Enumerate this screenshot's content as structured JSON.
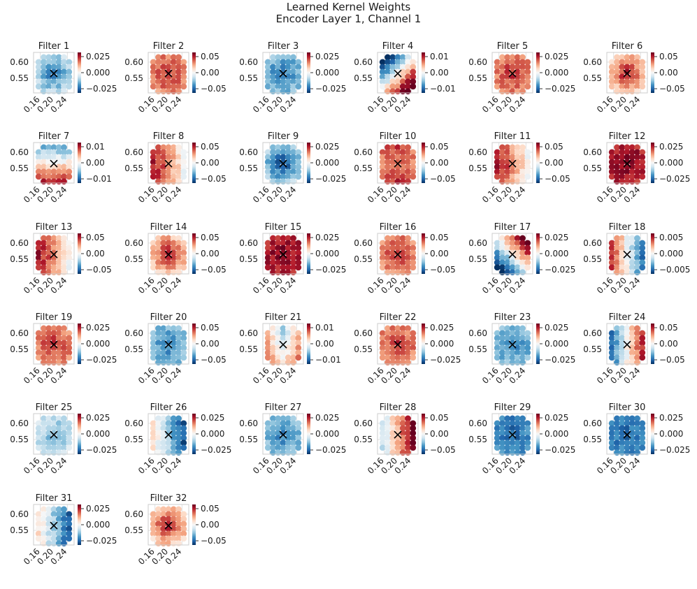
{
  "title_line1": "Learned Kernel Weights",
  "title_line2": "Encoder Layer 1, Channel 1",
  "chart_data": {
    "type": "scatter",
    "description_axes": {
      "xticks": [
        "0.16",
        "0.20",
        "0.24"
      ],
      "yticks": [
        "0.60",
        "0.55"
      ],
      "xlim": [
        0.14,
        0.26
      ],
      "ylim": [
        0.505,
        0.63
      ]
    },
    "center_marker": {
      "x": 0.2,
      "y": 0.565,
      "symbol": "×"
    },
    "colormap": "RdBu_r",
    "colors": {
      "neg": "#053061",
      "mid": "#f7f7f7",
      "pos": "#67001f"
    },
    "filters": [
      {
        "title": "Filter 1",
        "range": 0.025,
        "ticks": [
          "0.025",
          "0.000",
          "−0.025"
        ],
        "pattern": "neg_center"
      },
      {
        "title": "Filter 2",
        "range": 0.05,
        "ticks": [
          "0.05",
          "0.00",
          "−0.05"
        ],
        "pattern": "pos_all"
      },
      {
        "title": "Filter 3",
        "range": 0.025,
        "ticks": [
          "0.025",
          "0.000",
          "−0.025"
        ],
        "pattern": "neg_all"
      },
      {
        "title": "Filter 4",
        "range": 0.01,
        "ticks": [
          "0.01",
          "0.00",
          "−0.01"
        ],
        "pattern": "diag_pos_neg"
      },
      {
        "title": "Filter 5",
        "range": 0.025,
        "ticks": [
          "0.025",
          "0.000",
          "−0.025"
        ],
        "pattern": "pos_all"
      },
      {
        "title": "Filter 6",
        "range": 0.05,
        "ticks": [
          "0.05",
          "0.00",
          "−0.05"
        ],
        "pattern": "pos_center"
      },
      {
        "title": "Filter 7",
        "range": 0.01,
        "ticks": [
          "0.01",
          "0.00",
          "−0.01"
        ],
        "pattern": "pos_bottom"
      },
      {
        "title": "Filter 8",
        "range": 0.05,
        "ticks": [
          "0.05",
          "0.00",
          "−0.05"
        ],
        "pattern": "pos_left"
      },
      {
        "title": "Filter 9",
        "range": 0.025,
        "ticks": [
          "0.025",
          "0.000",
          "−0.025"
        ],
        "pattern": "neg_center_strong"
      },
      {
        "title": "Filter 10",
        "range": 0.05,
        "ticks": [
          "0.05",
          "0.00",
          "−0.05"
        ],
        "pattern": "pos_ring"
      },
      {
        "title": "Filter 11",
        "range": 0.05,
        "ticks": [
          "0.05",
          "0.00",
          "−0.05"
        ],
        "pattern": "pos_left"
      },
      {
        "title": "Filter 12",
        "range": 0.025,
        "ticks": [
          "0.025",
          "0.000",
          "−0.025"
        ],
        "pattern": "pos_all_strong"
      },
      {
        "title": "Filter 13",
        "range": 0.05,
        "ticks": [
          "0.05",
          "0.00",
          "−0.05"
        ],
        "pattern": "pos_left"
      },
      {
        "title": "Filter 14",
        "range": 0.05,
        "ticks": [
          "0.05",
          "0.00",
          "−0.05"
        ],
        "pattern": "pos_center"
      },
      {
        "title": "Filter 15",
        "range": 0.025,
        "ticks": [
          "0.025",
          "0.000",
          "−0.025"
        ],
        "pattern": "pos_all_strong"
      },
      {
        "title": "Filter 16",
        "range": 0.05,
        "ticks": [
          "0.05",
          "0.00",
          "−0.05"
        ],
        "pattern": "pos_all"
      },
      {
        "title": "Filter 17",
        "range": 0.025,
        "ticks": [
          "0.025",
          "0.000",
          "−0.025"
        ],
        "pattern": "diag_neg_pos"
      },
      {
        "title": "Filter 18",
        "range": 0.005,
        "ticks": [
          "0.005",
          "0.000",
          "−0.005"
        ],
        "pattern": "pos_left_neg_right"
      },
      {
        "title": "Filter 19",
        "range": 0.025,
        "ticks": [
          "0.025",
          "0.000",
          "−0.025"
        ],
        "pattern": "pos_all"
      },
      {
        "title": "Filter 20",
        "range": 0.05,
        "ticks": [
          "0.05",
          "0.00",
          "−0.05"
        ],
        "pattern": "neg_all"
      },
      {
        "title": "Filter 21",
        "range": 0.01,
        "ticks": [
          "0.01",
          "0.00",
          "−0.01"
        ],
        "pattern": "pos_sides"
      },
      {
        "title": "Filter 22",
        "range": 0.025,
        "ticks": [
          "0.025",
          "0.000",
          "−0.025"
        ],
        "pattern": "pos_all"
      },
      {
        "title": "Filter 23",
        "range": 0.025,
        "ticks": [
          "0.025",
          "0.000",
          "−0.025"
        ],
        "pattern": "neg_all"
      },
      {
        "title": "Filter 24",
        "range": 0.05,
        "ticks": [
          "0.05",
          "0.00",
          "−0.05"
        ],
        "pattern": "neg_left_pos_right"
      },
      {
        "title": "Filter 25",
        "range": 0.025,
        "ticks": [
          "0.025",
          "0.000",
          "−0.025"
        ],
        "pattern": "neg_weak"
      },
      {
        "title": "Filter 26",
        "range": 0.025,
        "ticks": [
          "0.025",
          "0.000",
          "−0.025"
        ],
        "pattern": "neg_right"
      },
      {
        "title": "Filter 27",
        "range": 0.025,
        "ticks": [
          "0.025",
          "0.000",
          "−0.025"
        ],
        "pattern": "neg_all"
      },
      {
        "title": "Filter 28",
        "range": 0.05,
        "ticks": [
          "0.05",
          "0.00",
          "−0.05"
        ],
        "pattern": "pos_right"
      },
      {
        "title": "Filter 29",
        "range": 0.025,
        "ticks": [
          "0.025",
          "0.000",
          "−0.025"
        ],
        "pattern": "neg_all_strong"
      },
      {
        "title": "Filter 30",
        "range": 0.025,
        "ticks": [
          "0.025",
          "0.000",
          "−0.025"
        ],
        "pattern": "neg_all_strong"
      },
      {
        "title": "Filter 31",
        "range": 0.025,
        "ticks": [
          "0.025",
          "0.000",
          "−0.025"
        ],
        "pattern": "neg_right"
      },
      {
        "title": "Filter 32",
        "range": 0.05,
        "ticks": [
          "0.05",
          "0.00",
          "−0.05"
        ],
        "pattern": "pos_center"
      }
    ]
  }
}
